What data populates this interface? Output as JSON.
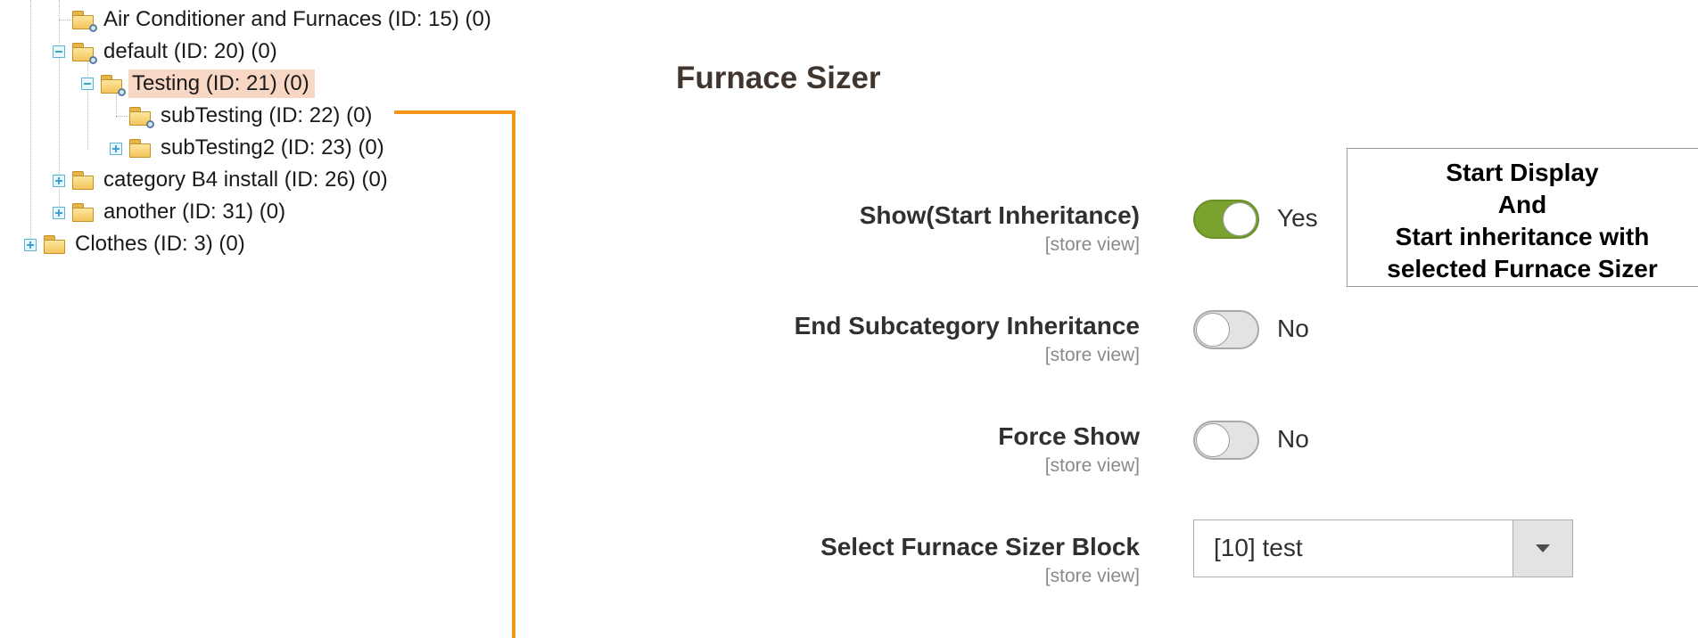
{
  "tree": {
    "nodes": [
      {
        "label": "Air Conditioner and Furnaces (ID: 15) (0)"
      },
      {
        "label": "default (ID: 20) (0)"
      },
      {
        "label": "Testing (ID: 21) (0)"
      },
      {
        "label": "subTesting (ID: 22) (0)"
      },
      {
        "label": "subTesting2 (ID: 23) (0)"
      },
      {
        "label": "category B4 install (ID: 26) (0)"
      },
      {
        "label": "another (ID: 31) (0)"
      },
      {
        "label": "Clothes (ID: 3) (0)"
      }
    ]
  },
  "section": {
    "title": "Furnace Sizer"
  },
  "fields": {
    "show": {
      "label": "Show(Start Inheritance)",
      "scope": "[store view]",
      "state": "Yes",
      "on": true
    },
    "end_inheritance": {
      "label": "End Subcategory Inheritance",
      "scope": "[store view]",
      "state": "No",
      "on": false
    },
    "force_show": {
      "label": "Force Show",
      "scope": "[store view]",
      "state": "No",
      "on": false
    },
    "block": {
      "label": "Select Furnace Sizer Block",
      "scope": "[store view]",
      "value": "[10] test"
    }
  },
  "callout": {
    "lines": [
      "Start Display",
      "And",
      "Start inheritance with",
      "selected Furnace Sizer"
    ]
  },
  "colors": {
    "accent_connector": "#f7941d",
    "switch_on": "#79a22e",
    "selected_node": "#f8d7c4"
  }
}
